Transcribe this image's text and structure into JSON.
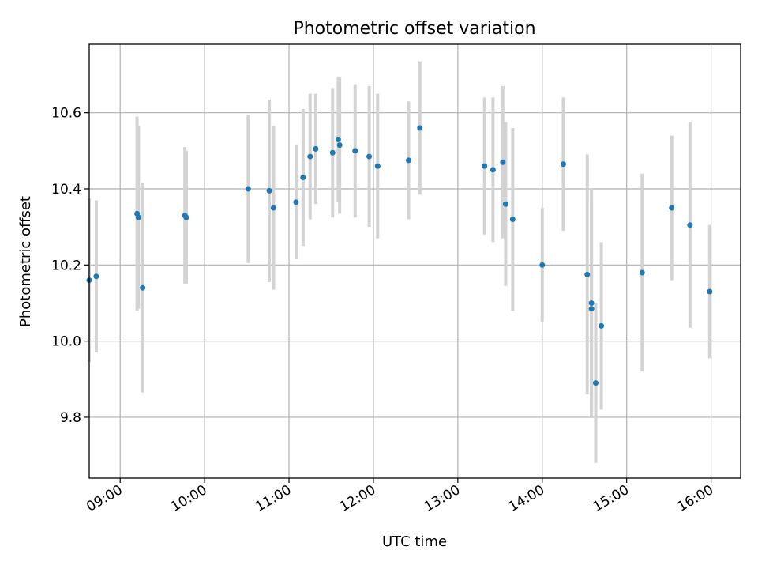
{
  "chart_data": {
    "type": "scatter",
    "title": "Photometric offset variation",
    "xlabel": "UTC time",
    "ylabel": "Photometric offset",
    "x_ticks": [
      "09:00",
      "10:00",
      "11:00",
      "12:00",
      "13:00",
      "14:00",
      "15:00",
      "16:00"
    ],
    "y_ticks": [
      "9.8",
      "10.0",
      "10.2",
      "10.4",
      "10.6"
    ],
    "xlim": [
      "08:38",
      "16:21"
    ],
    "ylim": [
      9.64,
      10.78
    ],
    "grid": true,
    "colors": {
      "points": "#1f77b4",
      "errorbars": "#d3d3d3"
    },
    "points": [
      {
        "x": "08:38",
        "y": 10.16,
        "yerr": 0.215
      },
      {
        "x": "08:43",
        "y": 10.17,
        "yerr": 0.2
      },
      {
        "x": "09:12",
        "y": 10.335,
        "yerr": 0.255
      },
      {
        "x": "09:13",
        "y": 10.325,
        "yerr": 0.24
      },
      {
        "x": "09:16",
        "y": 10.14,
        "yerr": 0.275
      },
      {
        "x": "09:46",
        "y": 10.33,
        "yerr": 0.18
      },
      {
        "x": "09:47",
        "y": 10.325,
        "yerr": 0.175
      },
      {
        "x": "10:31",
        "y": 10.4,
        "yerr": 0.195
      },
      {
        "x": "10:46",
        "y": 10.395,
        "yerr": 0.24
      },
      {
        "x": "10:49",
        "y": 10.35,
        "yerr": 0.215
      },
      {
        "x": "11:05",
        "y": 10.365,
        "yerr": 0.15
      },
      {
        "x": "11:10",
        "y": 10.43,
        "yerr": 0.18
      },
      {
        "x": "11:15",
        "y": 10.485,
        "yerr": 0.165
      },
      {
        "x": "11:19",
        "y": 10.505,
        "yerr": 0.145
      },
      {
        "x": "11:31",
        "y": 10.495,
        "yerr": 0.17
      },
      {
        "x": "11:35",
        "y": 10.53,
        "yerr": 0.165
      },
      {
        "x": "11:36",
        "y": 10.515,
        "yerr": 0.18
      },
      {
        "x": "11:47",
        "y": 10.5,
        "yerr": 0.175
      },
      {
        "x": "11:57",
        "y": 10.485,
        "yerr": 0.185
      },
      {
        "x": "12:03",
        "y": 10.46,
        "yerr": 0.19
      },
      {
        "x": "12:25",
        "y": 10.475,
        "yerr": 0.155
      },
      {
        "x": "12:33",
        "y": 10.56,
        "yerr": 0.175
      },
      {
        "x": "13:19",
        "y": 10.46,
        "yerr": 0.18
      },
      {
        "x": "13:25",
        "y": 10.45,
        "yerr": 0.19
      },
      {
        "x": "13:32",
        "y": 10.47,
        "yerr": 0.2
      },
      {
        "x": "13:34",
        "y": 10.36,
        "yerr": 0.215
      },
      {
        "x": "13:39",
        "y": 10.32,
        "yerr": 0.24
      },
      {
        "x": "14:00",
        "y": 10.2,
        "yerr": 0.15
      },
      {
        "x": "14:15",
        "y": 10.465,
        "yerr": 0.175
      },
      {
        "x": "14:32",
        "y": 10.175,
        "yerr": 0.315
      },
      {
        "x": "14:35",
        "y": 10.1,
        "yerr": 0.3
      },
      {
        "x": "14:35",
        "y": 10.085,
        "yerr": 0.28
      },
      {
        "x": "14:38",
        "y": 9.89,
        "yerr": 0.21
      },
      {
        "x": "14:42",
        "y": 10.04,
        "yerr": 0.22
      },
      {
        "x": "15:11",
        "y": 10.18,
        "yerr": 0.26
      },
      {
        "x": "15:32",
        "y": 10.35,
        "yerr": 0.19
      },
      {
        "x": "15:45",
        "y": 10.305,
        "yerr": 0.27
      },
      {
        "x": "15:59",
        "y": 10.13,
        "yerr": 0.175
      }
    ]
  }
}
